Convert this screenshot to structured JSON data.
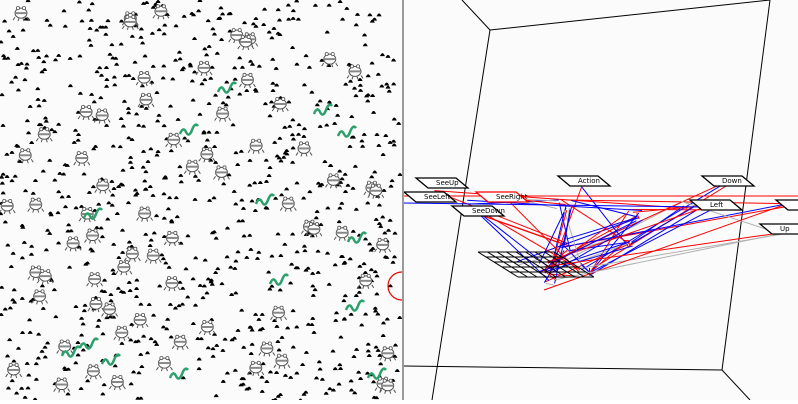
{
  "world": {
    "entities": [
      "food-pellet",
      "frog-creature",
      "snake-creature"
    ],
    "colors": {
      "food": "#000000",
      "frog": "#888888",
      "snake": "#2aa06a",
      "background": "#fbfbfb"
    }
  },
  "network": {
    "nodes": [
      {
        "id": "see-up",
        "label": "SeeUp",
        "color": "#000000"
      },
      {
        "id": "see-left",
        "label": "SeeLeft",
        "color": "#000000"
      },
      {
        "id": "see-right",
        "label": "SeeRight",
        "color": "#ff0000"
      },
      {
        "id": "see-down",
        "label": "SeeDown",
        "color": "#000000"
      },
      {
        "id": "action",
        "label": "Action",
        "color": "#000000"
      },
      {
        "id": "down",
        "label": "Down",
        "color": "#000000"
      },
      {
        "id": "left",
        "label": "Left",
        "color": "#000000"
      },
      {
        "id": "up",
        "label": "Up",
        "color": "#000000"
      }
    ],
    "colors": {
      "excitatory": "#ff0000",
      "inhibitory": "#0000ff",
      "neutral": "#b0b0b0"
    }
  }
}
